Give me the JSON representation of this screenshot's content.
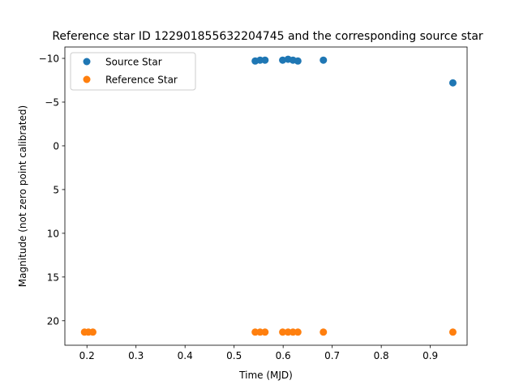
{
  "chart_data": {
    "type": "scatter",
    "title": "Reference star ID 1229018556322047​45 and the corresponding source star",
    "xlabel": "Time (MJD)",
    "ylabel": "Magnitude (not zero point calibrated)",
    "xlim": [
      0.155,
      0.975
    ],
    "ylim": [
      22.8,
      -11.3
    ],
    "y_inverted": true,
    "grid": false,
    "legend_position": "top-left",
    "x_ticks": [
      0.2,
      0.3,
      0.4,
      0.5,
      0.6,
      0.7,
      0.8,
      0.9
    ],
    "x_tick_labels": [
      "0.2",
      "0.3",
      "0.4",
      "0.5",
      "0.6",
      "0.7",
      "0.8",
      "0.9"
    ],
    "y_ticks": [
      -10,
      -5,
      0,
      5,
      10,
      15,
      20
    ],
    "y_tick_labels": [
      "−10",
      "−5",
      "0",
      "5",
      "10",
      "15",
      "20"
    ],
    "series": [
      {
        "name": "Source Star",
        "color": "#1f77b4",
        "x": [
          0.543,
          0.553,
          0.563,
          0.599,
          0.61,
          0.62,
          0.63,
          0.682,
          0.946
        ],
        "y": [
          -9.7,
          -9.8,
          -9.8,
          -9.8,
          -9.9,
          -9.8,
          -9.7,
          -9.8,
          -7.2
        ]
      },
      {
        "name": "Reference Star",
        "color": "#ff7f0e",
        "x": [
          0.195,
          0.203,
          0.212,
          0.543,
          0.553,
          0.563,
          0.599,
          0.61,
          0.62,
          0.63,
          0.682,
          0.946
        ],
        "y": [
          21.3,
          21.3,
          21.3,
          21.3,
          21.3,
          21.3,
          21.3,
          21.3,
          21.3,
          21.3,
          21.3,
          21.3
        ]
      }
    ]
  }
}
